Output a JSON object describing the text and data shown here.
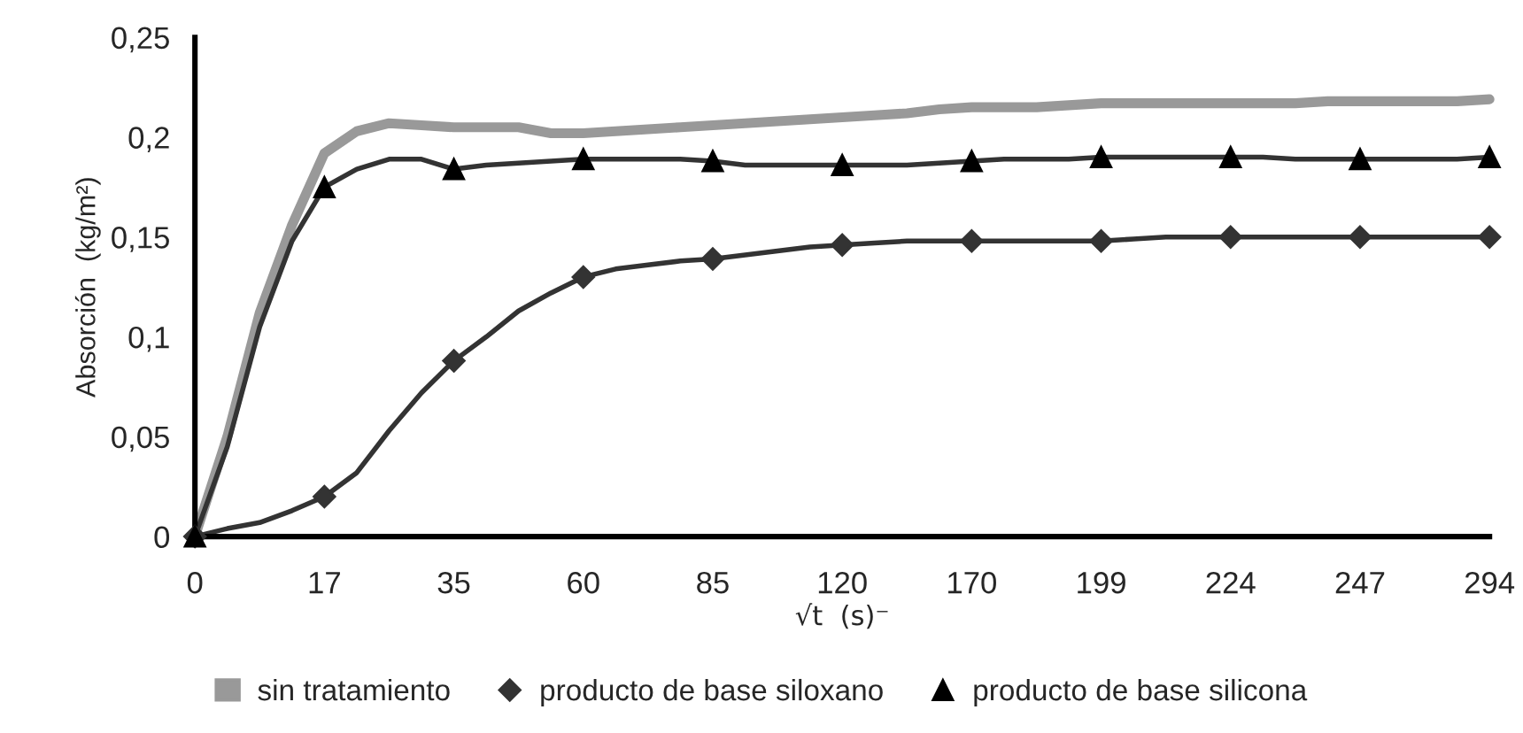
{
  "chart_data": {
    "type": "line",
    "xlabel": "√t  (s)⁻",
    "ylabel": "Absorción  (kg/m²)",
    "categories": [
      "0",
      null,
      null,
      null,
      "17",
      null,
      null,
      null,
      "35",
      null,
      null,
      null,
      "60",
      null,
      null,
      null,
      "85",
      null,
      null,
      null,
      "120",
      null,
      null,
      null,
      "170",
      null,
      null,
      null,
      "199",
      null,
      null,
      null,
      "224",
      null,
      null,
      null,
      "247",
      null,
      null,
      null,
      "294"
    ],
    "ylim": [
      0,
      0.25
    ],
    "yticks": [
      0,
      {
        "value": 0.05,
        "label": "0,05"
      },
      {
        "value": 0.1,
        "label": "0,1"
      },
      {
        "value": 0.15,
        "label": "0,15"
      },
      {
        "value": 0.2,
        "label": "0,2"
      },
      {
        "value": 0.25,
        "label": "0,25"
      }
    ],
    "legend": "bottom",
    "grid": false,
    "series": [
      {
        "name": "sin tratamiento",
        "color": "#999999",
        "values": [
          0,
          0.05,
          0.112,
          0.156,
          0.192,
          0.203,
          0.207,
          0.206,
          0.205,
          0.205,
          0.205,
          0.202,
          0.202,
          0.203,
          0.204,
          0.205,
          0.206,
          0.207,
          0.208,
          0.209,
          0.21,
          0.211,
          0.212,
          0.214,
          0.215,
          0.215,
          0.215,
          0.216,
          0.217,
          0.217,
          0.217,
          0.217,
          0.217,
          0.217,
          0.217,
          0.218,
          0.218,
          0.218,
          0.218,
          0.218,
          0.219
        ]
      },
      {
        "color": "#333333",
        "values": [
          0,
          0.004,
          0.007,
          0.013,
          0.02,
          0.032,
          0.053,
          0.072,
          0.088,
          0.1,
          0.113,
          0.122,
          0.13,
          0.134,
          0.136,
          0.138,
          0.139,
          0.141,
          0.143,
          0.145,
          0.146,
          0.147,
          0.148,
          0.148,
          0.148,
          0.148,
          0.148,
          0.148,
          0.148,
          0.149,
          0.15,
          0.15,
          0.15,
          0.15,
          0.15,
          0.15,
          0.15,
          0.15,
          0.15,
          0.15,
          0.15
        ]
      },
      {
        "color": "#333333",
        "values": [
          0,
          0.045,
          0.105,
          0.148,
          0.175,
          0.184,
          0.189,
          0.189,
          0.184,
          0.186,
          0.187,
          0.188,
          0.189,
          0.189,
          0.189,
          0.189,
          0.188,
          0.186,
          0.186,
          0.186,
          0.186,
          0.186,
          0.186,
          0.187,
          0.188,
          0.189,
          0.189,
          0.189,
          0.19,
          0.19,
          0.19,
          0.19,
          0.19,
          0.19,
          0.189,
          0.189,
          0.189,
          0.189,
          0.189,
          0.189,
          0.19
        ]
      },
      {
        "name": "producto de base siloxano",
        "type": "scatter",
        "marker": "diamond",
        "color": "#333333",
        "x": [
          "0",
          "17",
          "35",
          "60",
          "85",
          "120",
          "170",
          "199",
          "224",
          "247",
          "294"
        ],
        "values": [
          0,
          0.02,
          0.088,
          0.13,
          0.139,
          0.146,
          0.148,
          0.148,
          0.15,
          0.15,
          0.15
        ]
      },
      {
        "name": "producto de base silicona",
        "type": "scatter",
        "marker": "triangle",
        "color": "#000000",
        "x": [
          "0",
          "17",
          "35",
          "60",
          "85",
          "120",
          "170",
          "199",
          "224",
          "247",
          "294"
        ],
        "values": [
          0,
          0.175,
          0.184,
          0.189,
          0.188,
          0.186,
          0.188,
          0.19,
          0.19,
          0.189,
          0.19
        ]
      }
    ]
  }
}
